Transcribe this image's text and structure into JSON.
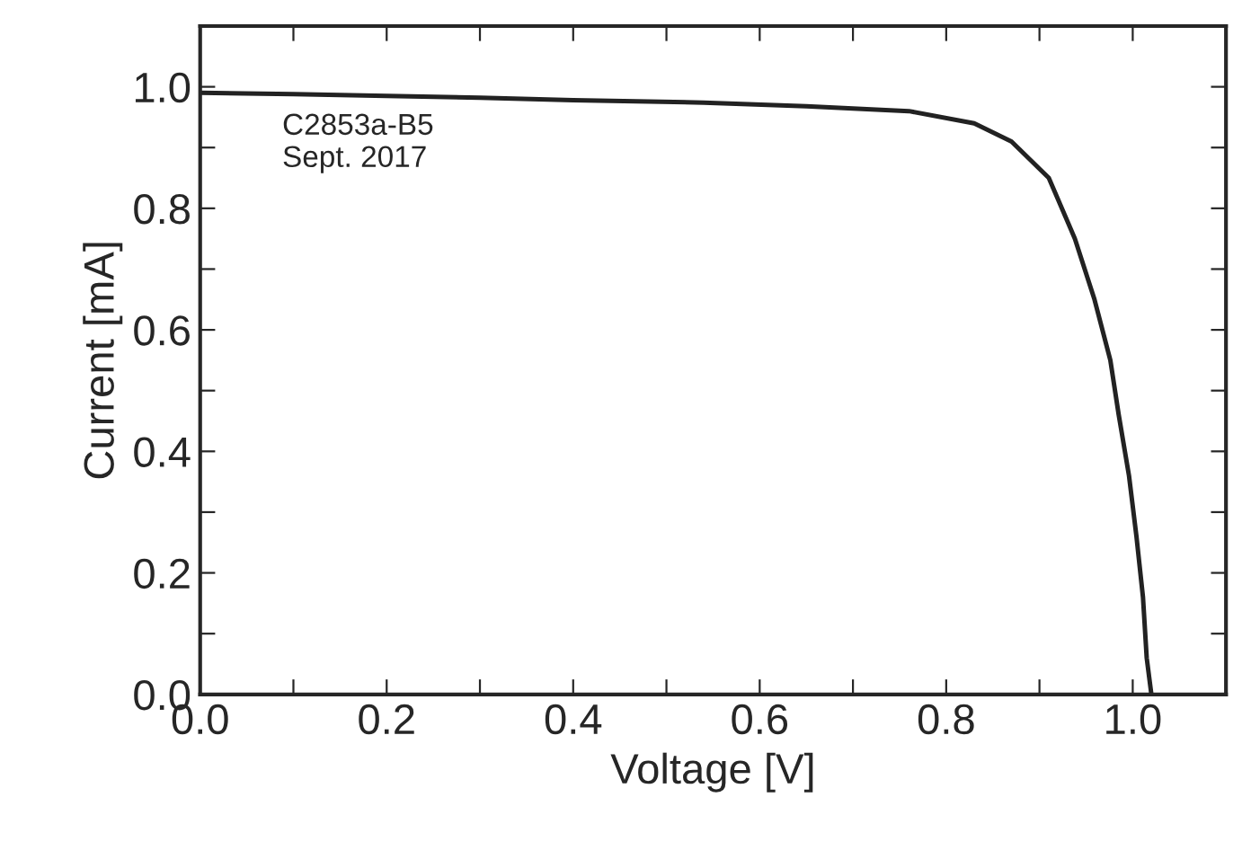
{
  "chart_data": {
    "type": "line",
    "xlabel": "Voltage [V]",
    "ylabel": "Current [mA]",
    "annotations": [
      "C2853a-B5\nSept. 2017"
    ],
    "xlim": [
      0,
      1.1
    ],
    "ylim": [
      0,
      1.1
    ],
    "xticks": [
      {
        "value": 0,
        "label": "0.0"
      },
      {
        "value": 0.1,
        "label": null
      },
      {
        "value": 0.2,
        "label": "0.2"
      },
      {
        "value": 0.3,
        "label": null
      },
      {
        "value": 0.4,
        "label": "0.4"
      },
      {
        "value": 0.5,
        "label": null
      },
      {
        "value": 0.6,
        "label": "0.6"
      },
      {
        "value": 0.7,
        "label": null
      },
      {
        "value": 0.8,
        "label": "0.8"
      },
      {
        "value": 0.9,
        "label": null
      },
      {
        "value": 1,
        "label": "1.0"
      }
    ],
    "yticks": [
      {
        "value": 0,
        "label": "0.0"
      },
      {
        "value": 0.1,
        "label": null
      },
      {
        "value": 0.2,
        "label": "0.2"
      },
      {
        "value": 0.3,
        "label": null
      },
      {
        "value": 0.4,
        "label": "0.4"
      },
      {
        "value": 0.5,
        "label": null
      },
      {
        "value": 0.6,
        "label": "0.6"
      },
      {
        "value": 0.7,
        "label": null
      },
      {
        "value": 0.8,
        "label": "0.8"
      },
      {
        "value": 0.9,
        "label": null
      },
      {
        "value": 1,
        "label": "1.0"
      }
    ],
    "grid": false,
    "legend": false,
    "marker": "none",
    "line_style": "solid",
    "series": [
      {
        "color": "#222222",
        "x": [
          0.0,
          0.1,
          0.2,
          0.3,
          0.4,
          0.54,
          0.65,
          0.76,
          0.83,
          0.87,
          0.91,
          0.938,
          0.959,
          0.976,
          0.985,
          0.996,
          1.004,
          1.011,
          1.015,
          1.02
        ],
        "values": [
          0.99,
          0.988,
          0.985,
          0.982,
          0.978,
          0.974,
          0.968,
          0.96,
          0.94,
          0.91,
          0.85,
          0.75,
          0.65,
          0.55,
          0.46,
          0.36,
          0.26,
          0.16,
          0.06,
          0.0
        ]
      }
    ]
  }
}
